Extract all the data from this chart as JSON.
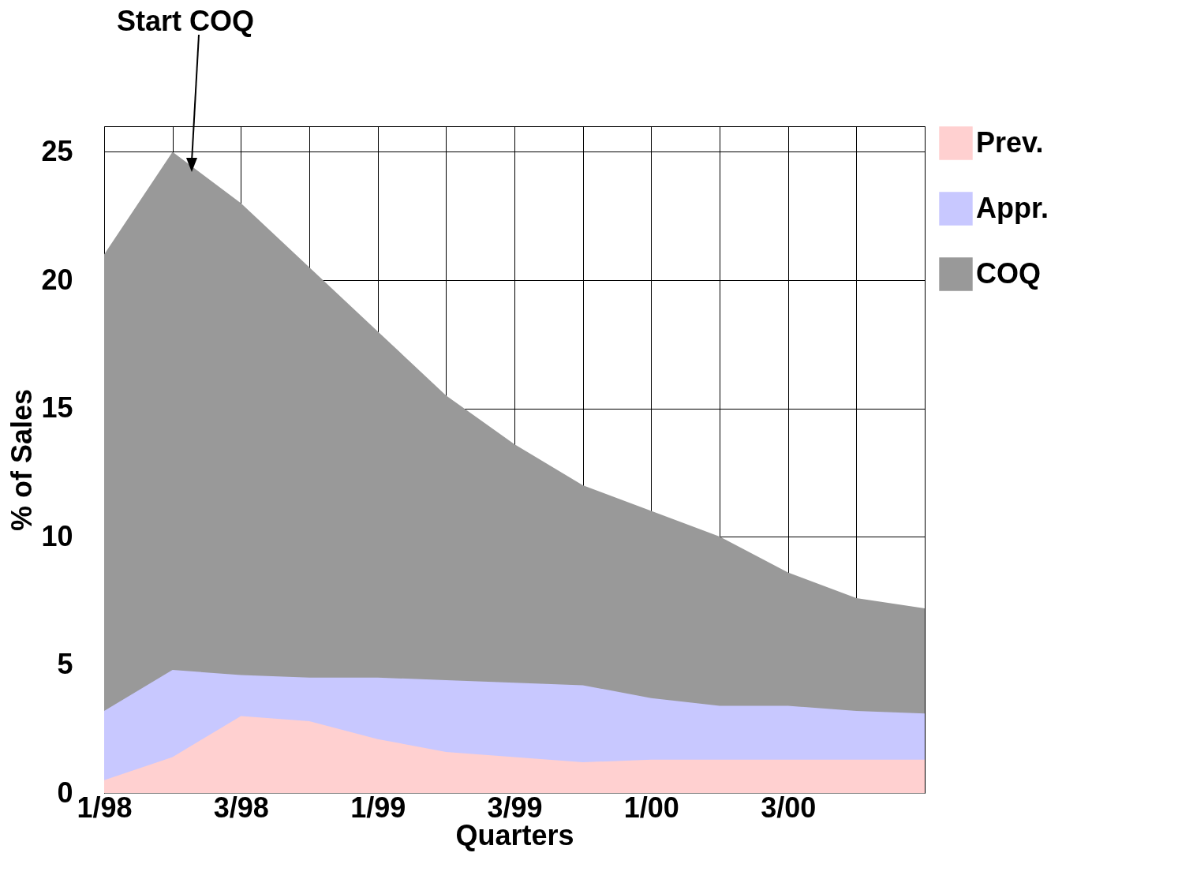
{
  "chart_data": {
    "type": "area",
    "xlabel": "Quarters",
    "ylabel": "% of Sales",
    "annotations": [
      "Start COQ"
    ],
    "categories": [
      "1/98",
      null,
      "3/98",
      null,
      "1/99",
      null,
      "3/99",
      null,
      "1/00",
      null,
      "3/00",
      null,
      null
    ],
    "series": [
      {
        "name": "COQ",
        "color": "#999999",
        "values": [
          21,
          25,
          23,
          20.5,
          18,
          15.5,
          13.6,
          12,
          11,
          10,
          8.6,
          7.6,
          7.2
        ]
      },
      {
        "name": "Appr.",
        "color": "#c8c8ff",
        "values": [
          3.2,
          4.8,
          4.6,
          4.5,
          4.5,
          4.4,
          4.3,
          4.2,
          3.7,
          3.4,
          3.4,
          3.2,
          3.1
        ]
      },
      {
        "name": "Prev.",
        "color": "#ffd0d0",
        "values": [
          0.5,
          1.4,
          3,
          2.8,
          2.1,
          1.6,
          1.4,
          1.2,
          1.3,
          1.3,
          1.3,
          1.3,
          1.3
        ]
      }
    ],
    "ylim": [
      0,
      26
    ],
    "yticks": [
      0,
      5,
      10,
      15,
      20,
      25
    ],
    "grid": true,
    "legend": "right"
  }
}
